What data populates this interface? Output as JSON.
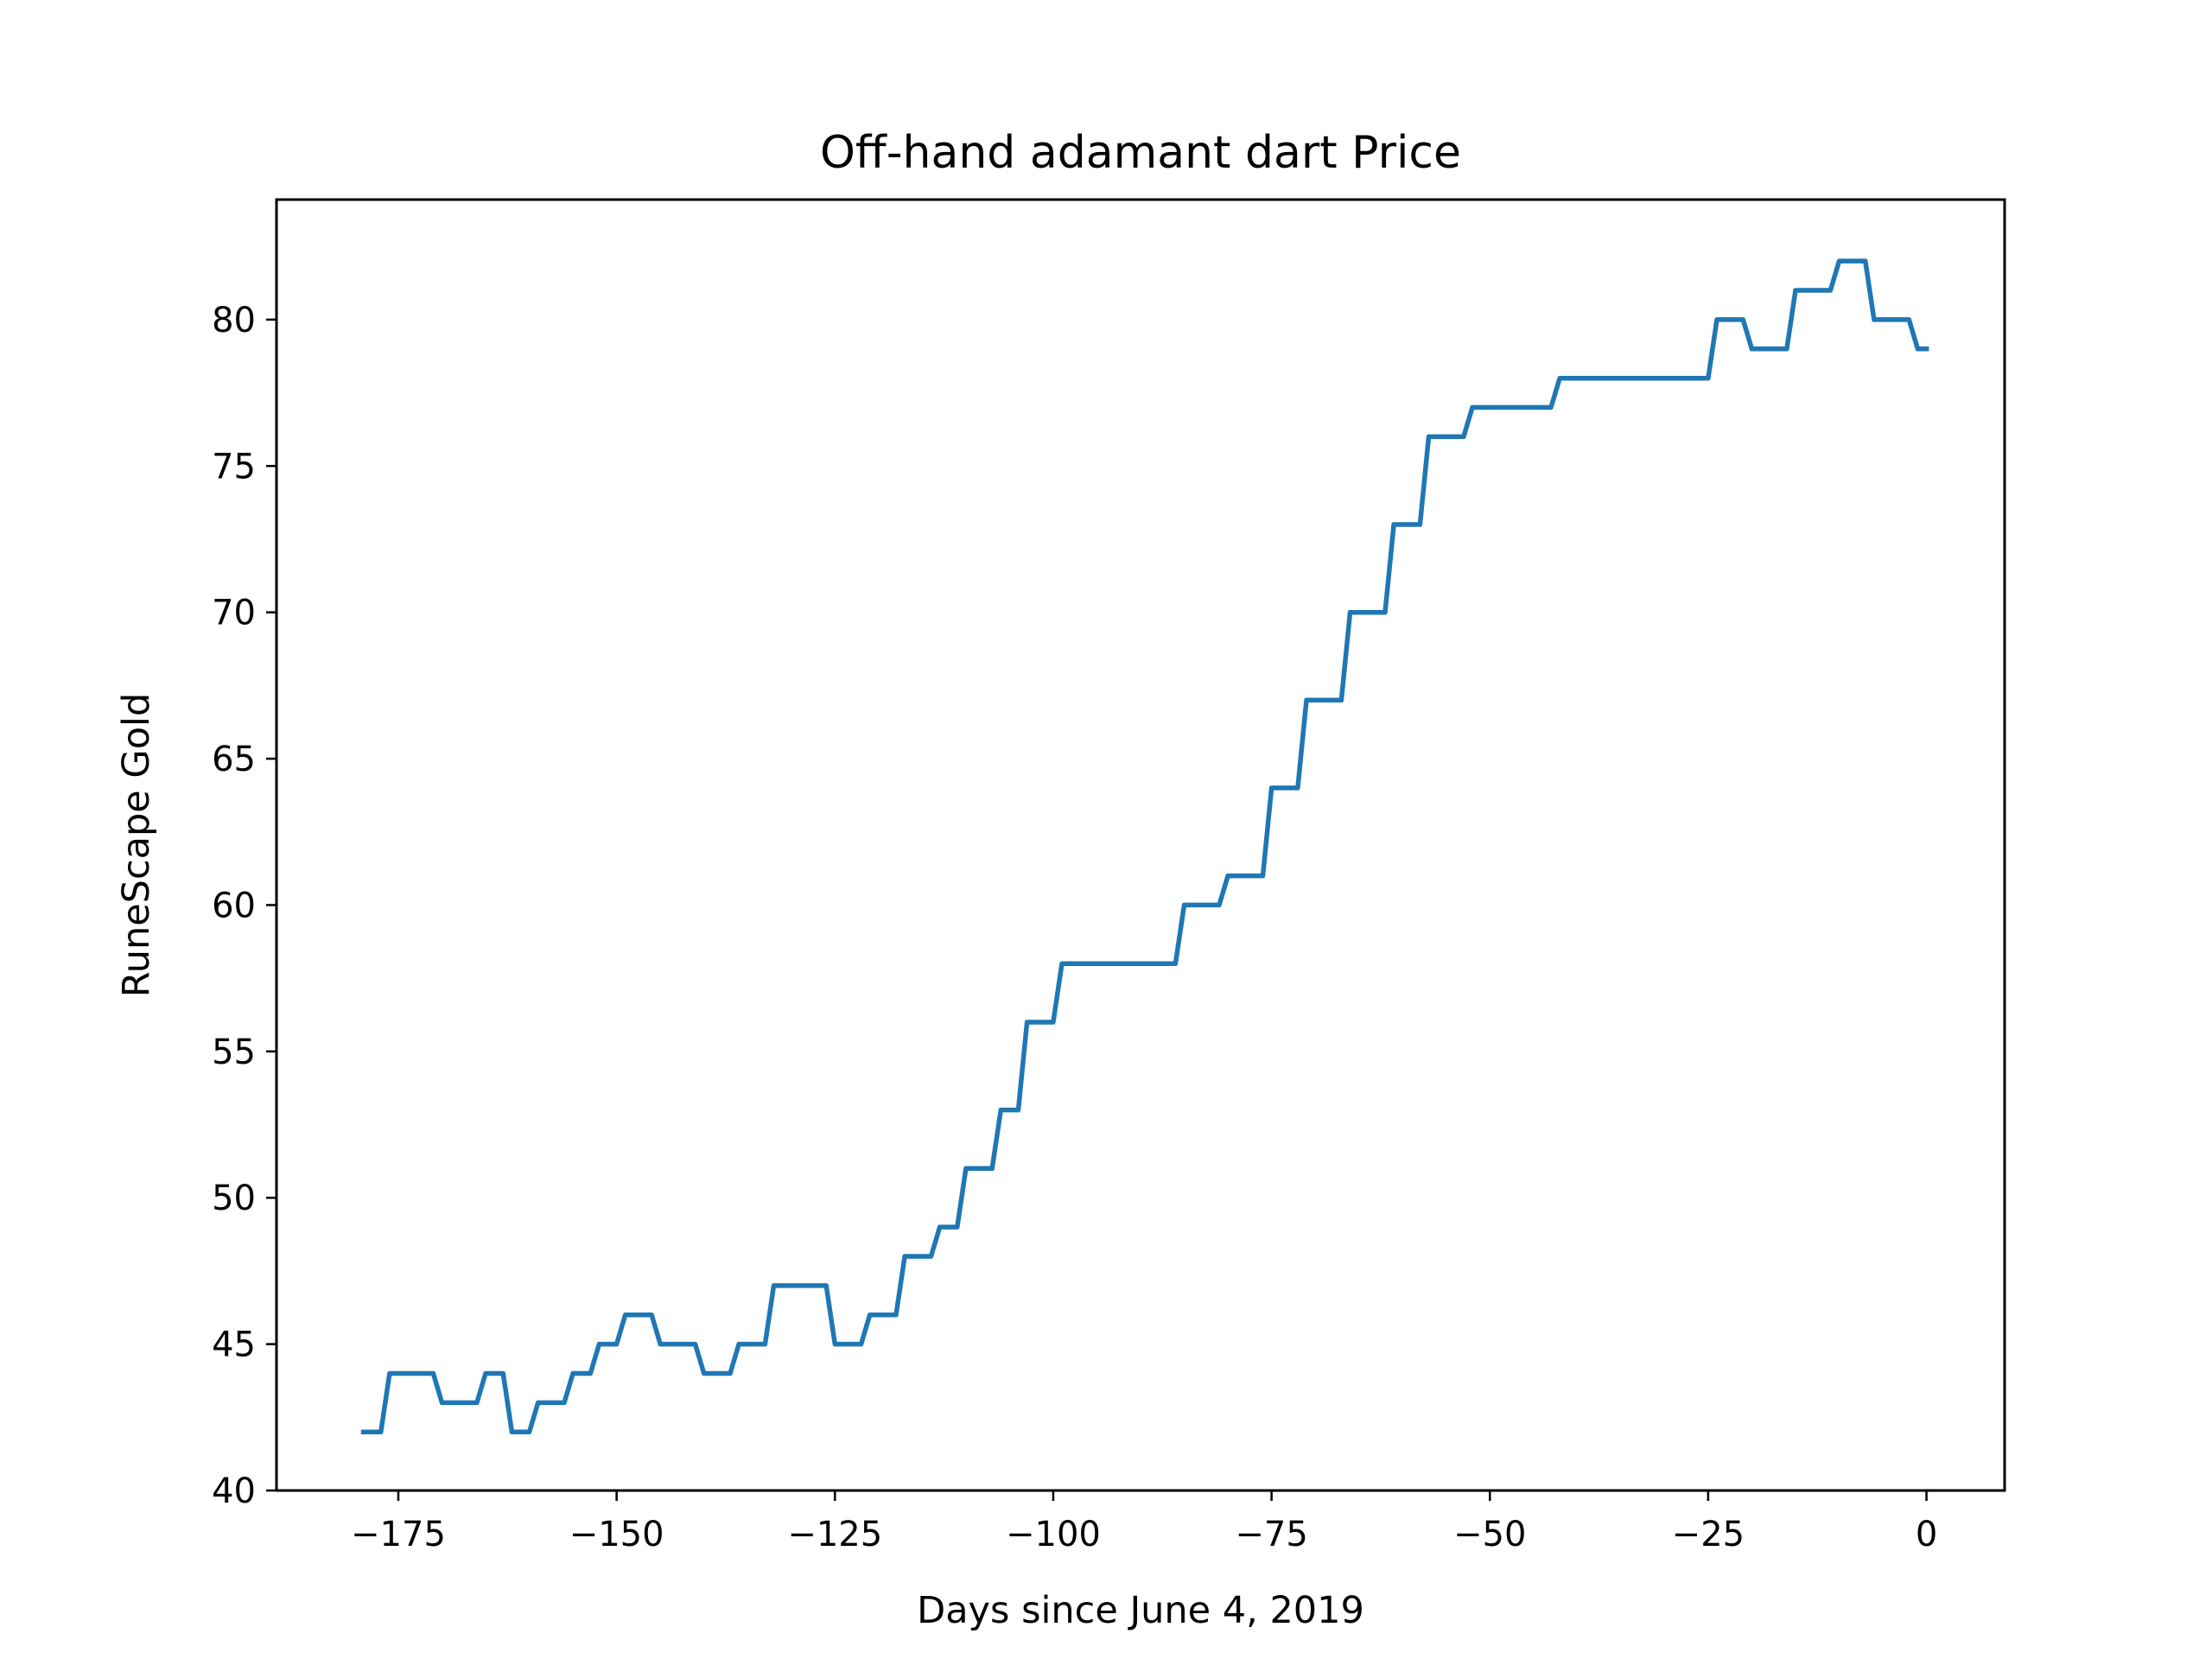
{
  "chart_data": {
    "type": "line",
    "title": "Off-hand adamant dart Price",
    "xlabel": "Days since June 4, 2019",
    "ylabel": "RuneScape Gold",
    "xlim": [
      -188.95,
      8.95
    ],
    "ylim": [
      40,
      84.1
    ],
    "xticks": [
      -175,
      -150,
      -125,
      -100,
      -75,
      -50,
      -25,
      0
    ],
    "xtick_labels": [
      "−175",
      "−150",
      "−125",
      "−100",
      "−75",
      "−50",
      "−25",
      "0"
    ],
    "yticks": [
      40,
      45,
      50,
      55,
      60,
      65,
      70,
      75,
      80
    ],
    "ytick_labels": [
      "40",
      "45",
      "50",
      "55",
      "60",
      "65",
      "70",
      "75",
      "80"
    ],
    "grid": false,
    "series": [
      {
        "name": "price",
        "color": "#1f77b4",
        "x": [
          -179,
          -177,
          -176,
          -171,
          -170,
          -166,
          -165,
          -163,
          -162,
          -160,
          -159,
          -156,
          -155,
          -153,
          -152,
          -150,
          -149,
          -146,
          -145,
          -141,
          -140,
          -137,
          -136,
          -133,
          -132,
          -126,
          -125,
          -122,
          -121,
          -118,
          -117,
          -114,
          -113,
          -111,
          -110,
          -107,
          -106,
          -104,
          -103,
          -100,
          -99,
          -86,
          -85,
          -81,
          -80,
          -76,
          -75,
          -72,
          -71,
          -67,
          -66,
          -62,
          -61,
          -58,
          -57,
          -53,
          -52,
          -43,
          -42,
          -25,
          -24,
          -21,
          -20,
          -16,
          -15,
          -11,
          -10,
          -7,
          -6,
          -2,
          -1,
          0
        ],
        "y": [
          42,
          42,
          44,
          44,
          43,
          43,
          44,
          44,
          42,
          42,
          43,
          43,
          44,
          44,
          45,
          45,
          46,
          46,
          45,
          45,
          44,
          44,
          45,
          45,
          47,
          47,
          45,
          45,
          46,
          46,
          48,
          48,
          49,
          49,
          51,
          51,
          53,
          53,
          56,
          56,
          58,
          58,
          60,
          60,
          61,
          61,
          64,
          64,
          67,
          67,
          70,
          70,
          73,
          73,
          76,
          76,
          77,
          77,
          78,
          78,
          80,
          80,
          79,
          79,
          81,
          81,
          82,
          82,
          80,
          80,
          79,
          79
        ]
      }
    ]
  }
}
